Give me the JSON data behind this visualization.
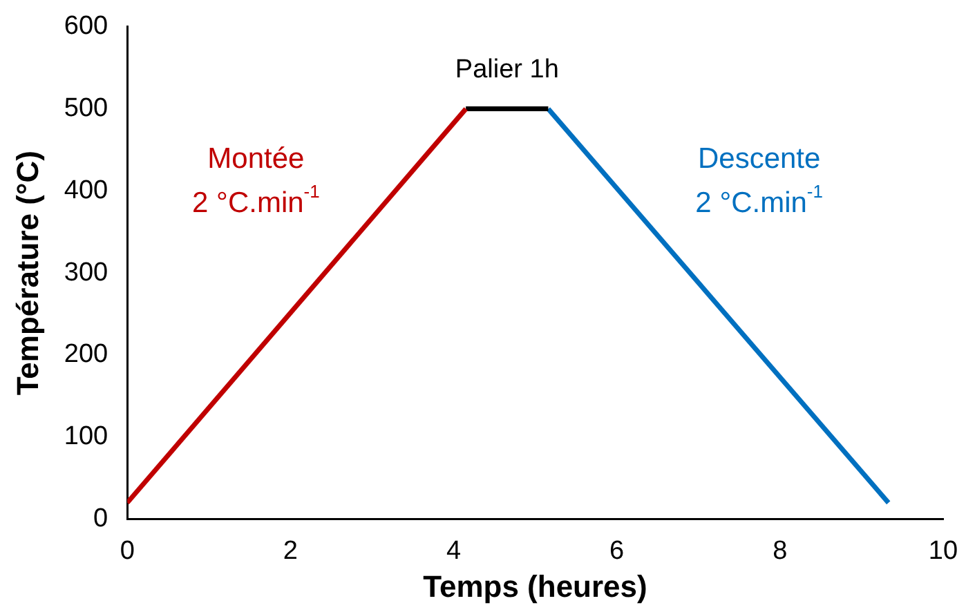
{
  "chart_data": {
    "type": "line",
    "xlabel": "Temps (heures)",
    "ylabel": "Température (°C)",
    "series": [
      {
        "name": "Montée",
        "color": "#c00000",
        "x": [
          0,
          4.15
        ],
        "values": [
          20,
          500
        ]
      },
      {
        "name": "Palier 1h",
        "color": "#000000",
        "x": [
          4.15,
          5.16
        ],
        "values": [
          500,
          500
        ]
      },
      {
        "name": "Descente",
        "color": "#0070c0",
        "x": [
          5.16,
          9.33
        ],
        "values": [
          500,
          20
        ]
      }
    ],
    "annotations": [
      "2 °C.min$^{-1}$",
      "2 °C.min$^{-1}$"
    ],
    "xlim": [
      0,
      10
    ],
    "xticks": [
      0,
      2,
      4,
      6,
      8,
      10
    ],
    "ylim": [
      0,
      600
    ],
    "yticks": [
      0,
      100,
      200,
      300,
      400,
      500,
      600
    ],
    "grid": false,
    "legend": false,
    "marker": "none",
    "line_style": "solid"
  }
}
